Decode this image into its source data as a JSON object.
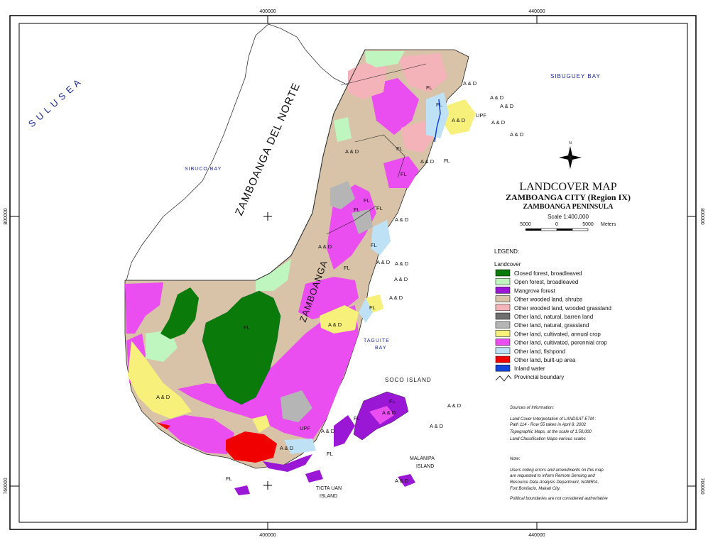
{
  "title": {
    "line1": "LANDCOVER MAP",
    "line2": "ZAMBOANGA CITY (Region IX)",
    "line3": "ZAMBOANGA PENINSULA"
  },
  "scale": {
    "text": "Scale 1:400,000",
    "ticks": [
      "5000",
      "0",
      "5000"
    ],
    "unit": "Meters"
  },
  "grid": {
    "top": [
      "400000",
      "440000"
    ],
    "bottom": [
      "400000",
      "440000"
    ],
    "left": [
      "800000",
      "760000"
    ],
    "right": [
      "800000",
      "760000"
    ]
  },
  "water_labels": {
    "sulu_sea": "S U L U   S E A",
    "sibuguey_bay": "SIBUGUEY BAY",
    "sibuco_bay": "SIBUCO BAY",
    "taguite_bay": "TAGUITE\nBAY",
    "taguite_1": "TAGUITE",
    "taguite_2": "BAY"
  },
  "place_labels": {
    "zamboanga_del_norte": "ZAMBOANGA DEL NORTE",
    "zamboanga_del_sur": "ZAMBOANGA",
    "soco_island": "SOCO ISLAND",
    "malanipa_1": "MALANIPA",
    "malanipa_2": "ISLAND",
    "tictauan_1": "TICTA UAN",
    "tictauan_2": "ISLAND"
  },
  "map_codes": {
    "fl": "FL",
    "ad": "A & D",
    "upf": "UPF"
  },
  "legend": {
    "heading": "LEGEND:",
    "group": "Landcover",
    "items": [
      {
        "label": "Closed forest, broadleaved",
        "color": "#0a7a0a"
      },
      {
        "label": "Open forest, broadleaved",
        "color": "#bff5bf"
      },
      {
        "label": "Mangrove forest",
        "color": "#9a17d6"
      },
      {
        "label": "Other wooded land, shrubs",
        "color": "#d9c3a8"
      },
      {
        "label": "Other wooded land, wooded grassland",
        "color": "#f3b3b8"
      },
      {
        "label": "Other land, natural, barren land",
        "color": "#6f6f6f"
      },
      {
        "label": "Other land, natural, grassland",
        "color": "#b5b5b5"
      },
      {
        "label": "Other land, cultivated, annual crop",
        "color": "#f7f07a"
      },
      {
        "label": "Other land, cultivated, perennial crop",
        "color": "#ea4df0"
      },
      {
        "label": "Other land, fishpond",
        "color": "#bfe1f5"
      },
      {
        "label": "Other land, built-up area",
        "color": "#f00000"
      },
      {
        "label": "Inland water",
        "color": "#1544d8"
      }
    ],
    "boundary_label": "Provincial boundary"
  },
  "sources": {
    "heading": "Sources of Information:",
    "lines": [
      "Land Cover Interpretation of LANDSAT ETM :",
      "   Path 114 - Row 55 taken in April 8, 2002",
      "Topographic Maps, at the scale of 1:50,000",
      "Land Classification Maps-various scales"
    ]
  },
  "note": {
    "heading": "Note:",
    "lines": [
      "Users noting errors and amendments on this map",
      "are requested to inform Remote Sensing and",
      "Resource Data Analysis Department, NAMRIA,",
      "Fort Bonifacio, Makati City."
    ],
    "last_line": "Political boundaries are not considered authoritative"
  },
  "north_arrow": {
    "label": "N"
  },
  "colors": {
    "frame": "#000000",
    "water_text": "#1c2a9c",
    "boundary": "#555555"
  }
}
